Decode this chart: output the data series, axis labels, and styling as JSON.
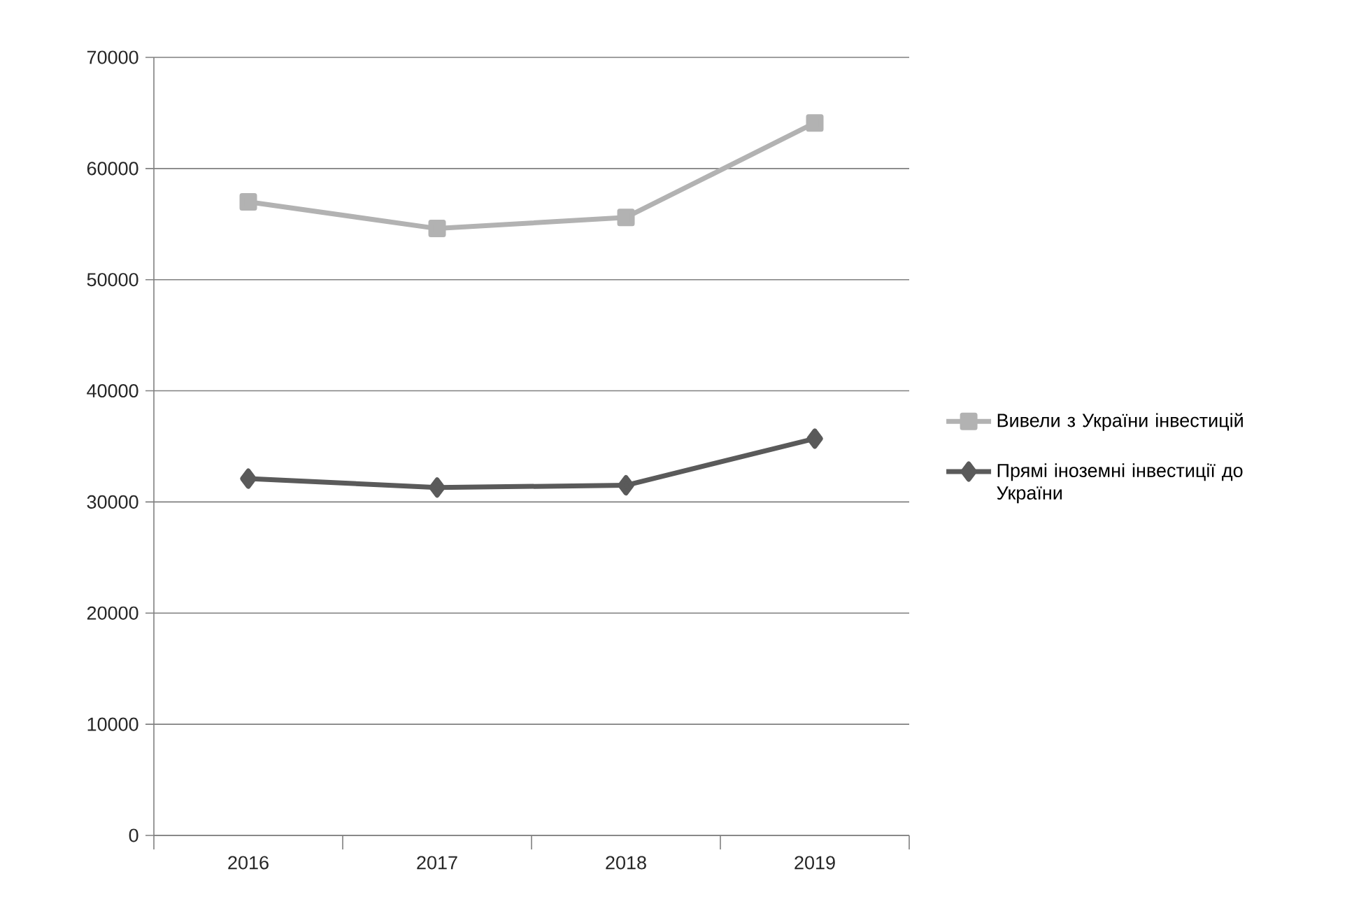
{
  "chart_data": {
    "type": "line",
    "categories": [
      "2016",
      "2017",
      "2018",
      "2019"
    ],
    "series": [
      {
        "name": "Вивели з України інвестицій",
        "color": "#b2b2b2",
        "marker": "square",
        "values": [
          57000,
          54600,
          55600,
          64100
        ]
      },
      {
        "name": "Прямі іноземні інвестиції до України",
        "color": "#5a5a5a",
        "marker": "diamond",
        "values": [
          32100,
          31300,
          31500,
          35700
        ]
      }
    ],
    "ylim": [
      0,
      70000
    ],
    "yticks": [
      0,
      10000,
      20000,
      30000,
      40000,
      50000,
      60000,
      70000
    ],
    "grid": "y",
    "legend": "right",
    "line_style": "solid"
  }
}
